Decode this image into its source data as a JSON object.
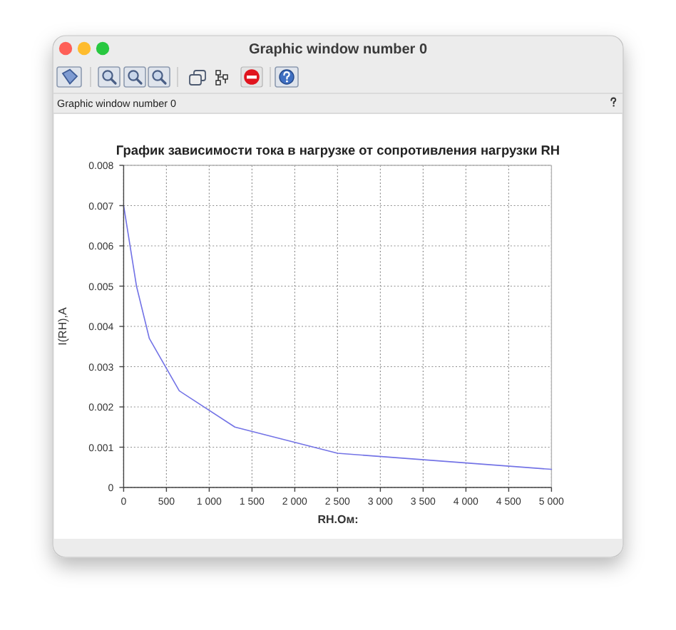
{
  "chart_data": {
    "type": "line",
    "title": "График зависимости тока в нагрузке от сопротивления нагрузки RH",
    "xlabel": "RH.Ом:",
    "ylabel": "I(RH),A",
    "annotations": [
      "Graphic window number 0",
      "Graphic window number 0"
    ],
    "x": [
      0,
      150,
      300,
      650,
      1300,
      2500,
      5000
    ],
    "series": [
      {
        "color": "#7373e6",
        "values": [
          0.007,
          0.005,
          0.0037,
          0.0024,
          0.0015,
          0.00085,
          0.00045
        ]
      }
    ],
    "xlim": [
      0,
      5000
    ],
    "ylim": [
      0,
      0.008
    ],
    "xticks": [
      0,
      500,
      {
        "value": 1000,
        "label": "1 000"
      },
      {
        "value": 1500,
        "label": "1 500"
      },
      {
        "value": 2000,
        "label": "2 000"
      },
      {
        "value": 2500,
        "label": "2 500"
      },
      {
        "value": 3000,
        "label": "3 000"
      },
      {
        "value": 3500,
        "label": "3 500"
      },
      {
        "value": 4000,
        "label": "4 000"
      },
      {
        "value": 4500,
        "label": "4 500"
      },
      {
        "value": 5000,
        "label": "5 000"
      }
    ],
    "yticks": [
      0,
      0.001,
      0.002,
      0.003,
      0.004,
      0.005,
      0.006,
      0.007,
      0.008
    ],
    "grid": true
  }
}
